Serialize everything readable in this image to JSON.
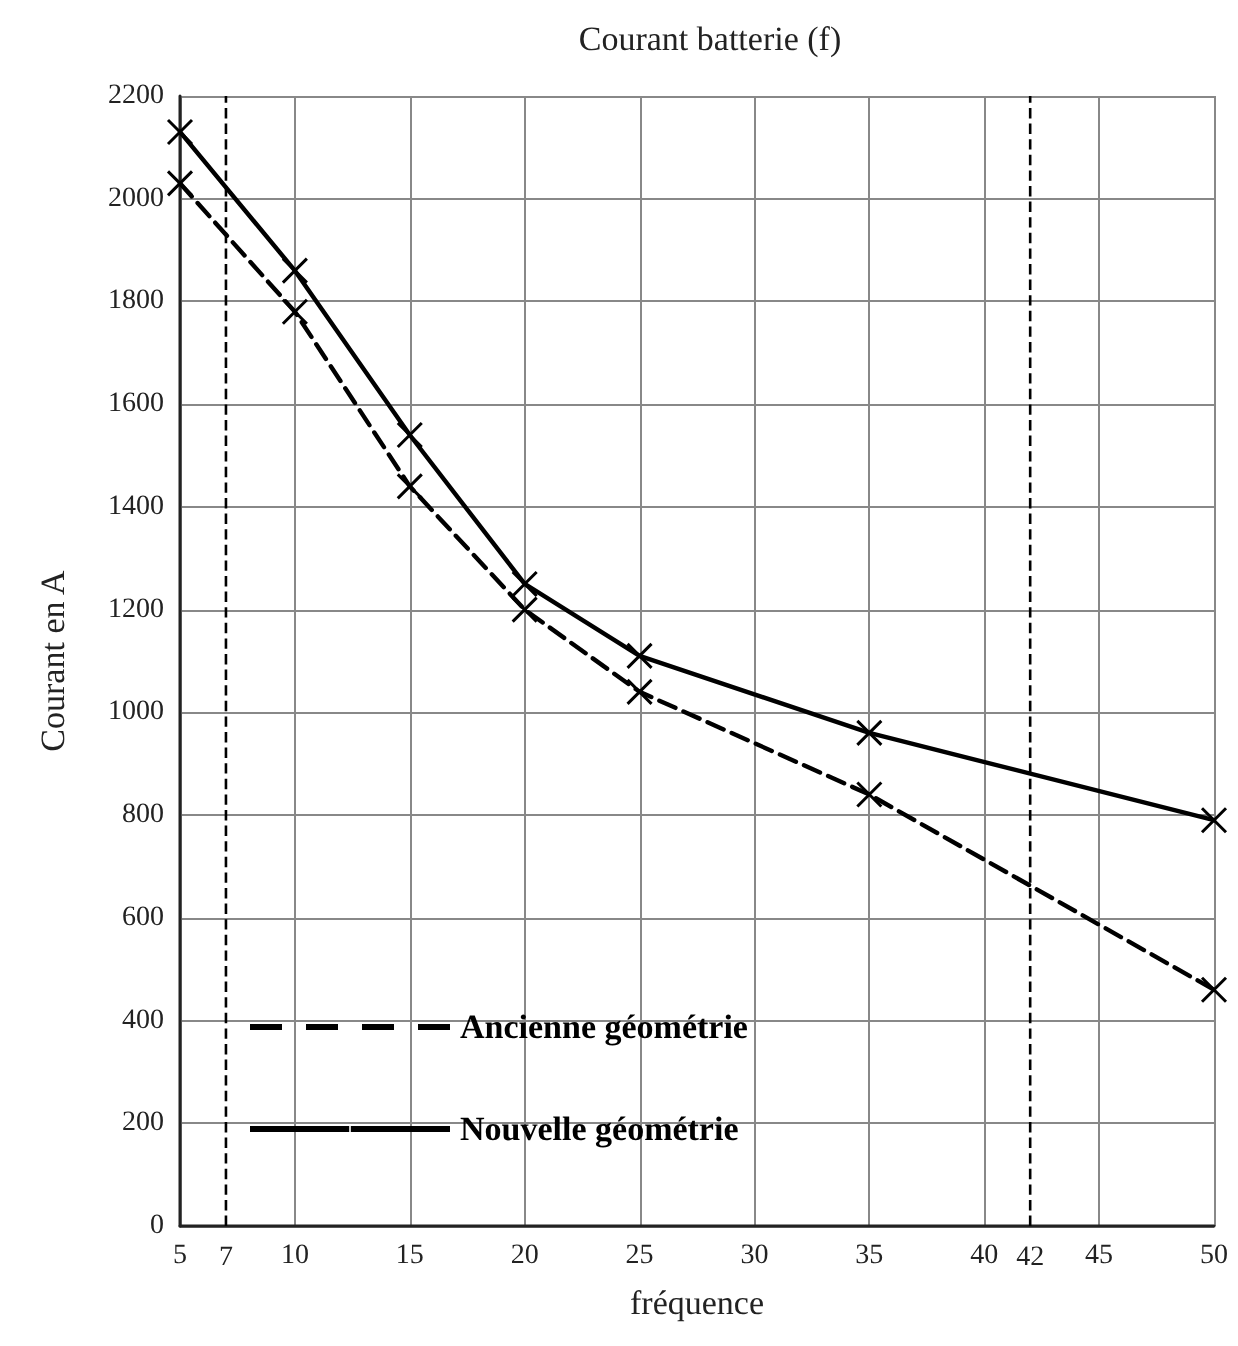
{
  "chart_data": {
    "type": "line",
    "title": "Courant batterie (f)",
    "xlabel": "fréquence",
    "ylabel": "Courant en A",
    "x": [
      5,
      10,
      15,
      20,
      25,
      35,
      50
    ],
    "series": [
      {
        "name": "Ancienne géométrie",
        "color": "#000000",
        "line_style": "dashed",
        "values": [
          2030,
          1780,
          1440,
          1200,
          1040,
          840,
          460
        ]
      },
      {
        "name": "Nouvelle géométrie",
        "color": "#000000",
        "line_style": "solid",
        "values": [
          2130,
          1860,
          1540,
          1250,
          1110,
          960,
          790
        ]
      }
    ],
    "xlim": [
      5,
      50
    ],
    "xticks": [
      5,
      10,
      15,
      20,
      25,
      30,
      35,
      40,
      45,
      50
    ],
    "ylim": [
      0,
      2200
    ],
    "yticks": [
      0,
      200,
      400,
      600,
      800,
      1000,
      1200,
      1400,
      1600,
      1800,
      2000,
      2200
    ],
    "ref_lines": [
      {
        "axis": "x",
        "value": 7,
        "label": "7",
        "color": "#000000",
        "line_style": "dashed"
      },
      {
        "axis": "x",
        "value": 42,
        "label": "42",
        "color": "#000000",
        "line_style": "dashed"
      }
    ],
    "grid": true,
    "legend": "bottom left",
    "marker": "cross"
  }
}
